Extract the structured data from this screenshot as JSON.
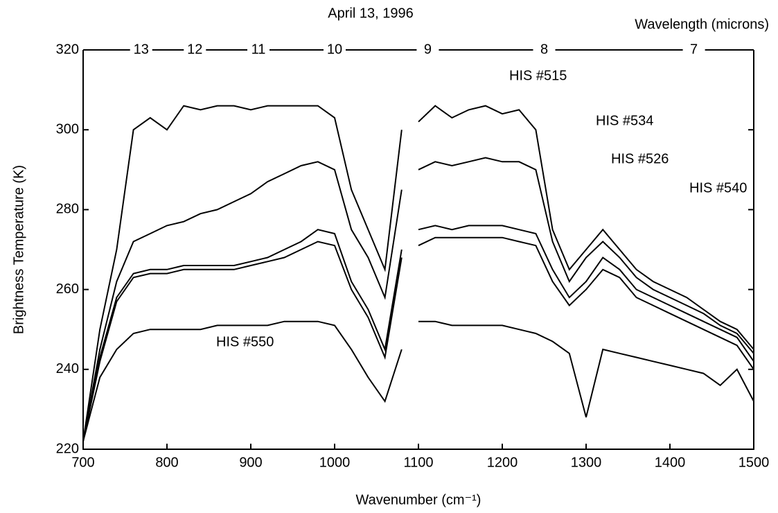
{
  "chart_data": {
    "type": "line",
    "title": "April 13, 1996",
    "xlabel": "Wavenumber (cm⁻¹)",
    "ylabel": "Brightness Temperature (K)",
    "x2label": "Wavelength (microns)",
    "x": [
      700,
      720,
      740,
      760,
      780,
      800,
      820,
      840,
      860,
      880,
      900,
      920,
      940,
      960,
      980,
      1000,
      1020,
      1040,
      1060,
      1080,
      1090,
      1100,
      1120,
      1140,
      1160,
      1180,
      1200,
      1220,
      1240,
      1260,
      1280,
      1300,
      1320,
      1340,
      1360,
      1380,
      1400,
      1420,
      1440,
      1460,
      1480,
      1500
    ],
    "series": [
      {
        "name": "HIS #515",
        "color": "#000000",
        "values": [
          222,
          250,
          270,
          300,
          303,
          300,
          306,
          305,
          306,
          306,
          305,
          306,
          306,
          306,
          306,
          303,
          285,
          275,
          265,
          300,
          null,
          302,
          306,
          303,
          305,
          306,
          304,
          305,
          300,
          275,
          265,
          270,
          275,
          270,
          265,
          262,
          260,
          258,
          255,
          252,
          250,
          245
        ]
      },
      {
        "name": "HIS #534",
        "color": "#000000",
        "values": [
          222,
          245,
          262,
          272,
          274,
          276,
          277,
          279,
          280,
          282,
          284,
          287,
          289,
          291,
          292,
          290,
          275,
          268,
          258,
          285,
          null,
          290,
          292,
          291,
          292,
          293,
          292,
          292,
          290,
          272,
          262,
          268,
          272,
          268,
          263,
          260,
          258,
          256,
          254,
          251,
          249,
          244
        ]
      },
      {
        "name": "HIS #526",
        "color": "#000000",
        "values": [
          222,
          243,
          258,
          264,
          265,
          265,
          266,
          266,
          266,
          266,
          267,
          268,
          270,
          272,
          275,
          274,
          262,
          255,
          245,
          270,
          null,
          275,
          276,
          275,
          276,
          276,
          276,
          275,
          274,
          265,
          258,
          262,
          268,
          265,
          260,
          258,
          256,
          254,
          252,
          250,
          248,
          242
        ]
      },
      {
        "name": "HIS #540",
        "color": "#000000",
        "values": [
          222,
          242,
          257,
          263,
          264,
          264,
          265,
          265,
          265,
          265,
          266,
          267,
          268,
          270,
          272,
          271,
          260,
          253,
          243,
          268,
          null,
          271,
          273,
          273,
          273,
          273,
          273,
          272,
          271,
          262,
          256,
          260,
          265,
          263,
          258,
          256,
          254,
          252,
          250,
          248,
          246,
          240
        ]
      },
      {
        "name": "HIS #550",
        "color": "#000000",
        "values": [
          222,
          238,
          245,
          249,
          250,
          250,
          250,
          250,
          251,
          251,
          251,
          251,
          252,
          252,
          252,
          251,
          245,
          238,
          232,
          245,
          null,
          252,
          252,
          251,
          251,
          251,
          251,
          250,
          249,
          247,
          244,
          228,
          245,
          244,
          243,
          242,
          241,
          240,
          239,
          236,
          240,
          232
        ]
      }
    ],
    "xlim": [
      700,
      1500
    ],
    "xticks": [
      700,
      800,
      900,
      1000,
      1100,
      1200,
      1300,
      1400,
      1500
    ],
    "ylim": [
      220,
      320
    ],
    "yticks": [
      220,
      240,
      260,
      280,
      300,
      320
    ],
    "x2ticks": [
      {
        "value": 769.2,
        "label": "13"
      },
      {
        "value": 833.3,
        "label": "12"
      },
      {
        "value": 909.1,
        "label": "11"
      },
      {
        "value": 1000,
        "label": "10"
      },
      {
        "value": 1111.1,
        "label": "9"
      },
      {
        "value": 1250,
        "label": "8"
      },
      {
        "value": 1428.6,
        "label": "7"
      }
    ],
    "grid": false
  }
}
